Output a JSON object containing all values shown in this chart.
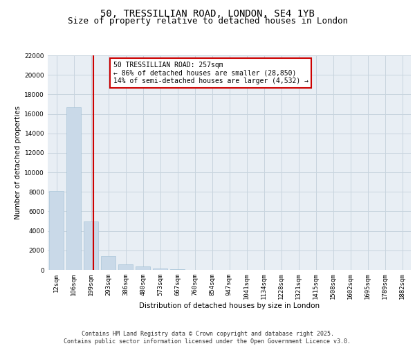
{
  "title_line1": "50, TRESSILLIAN ROAD, LONDON, SE4 1YB",
  "title_line2": "Size of property relative to detached houses in London",
  "xlabel": "Distribution of detached houses by size in London",
  "ylabel": "Number of detached properties",
  "categories": [
    "12sqm",
    "106sqm",
    "199sqm",
    "293sqm",
    "386sqm",
    "480sqm",
    "573sqm",
    "667sqm",
    "760sqm",
    "854sqm",
    "947sqm",
    "1041sqm",
    "1134sqm",
    "1228sqm",
    "1321sqm",
    "1415sqm",
    "1508sqm",
    "1602sqm",
    "1695sqm",
    "1789sqm",
    "1882sqm"
  ],
  "bar_heights": [
    8100,
    16700,
    5000,
    1400,
    600,
    350,
    170,
    70,
    30,
    0,
    0,
    0,
    0,
    0,
    0,
    0,
    0,
    0,
    0,
    0,
    0
  ],
  "bar_color": "#c9d9e8",
  "bar_edgecolor": "#a8c4d8",
  "grid_color": "#c8d4de",
  "background_color": "#e8eef4",
  "vline_x_index": 2.12,
  "vline_color": "#cc0000",
  "annotation_text": "50 TRESSILLIAN ROAD: 257sqm\n← 86% of detached houses are smaller (28,850)\n14% of semi-detached houses are larger (4,532) →",
  "annotation_box_edgecolor": "#cc0000",
  "annotation_box_facecolor": "#ffffff",
  "ylim": [
    0,
    22000
  ],
  "yticks": [
    0,
    2000,
    4000,
    6000,
    8000,
    10000,
    12000,
    14000,
    16000,
    18000,
    20000,
    22000
  ],
  "footer_text": "Contains HM Land Registry data © Crown copyright and database right 2025.\nContains public sector information licensed under the Open Government Licence v3.0.",
  "title_fontsize": 10,
  "subtitle_fontsize": 9,
  "axis_label_fontsize": 7.5,
  "tick_fontsize": 6.5,
  "annotation_fontsize": 7,
  "footer_fontsize": 6
}
